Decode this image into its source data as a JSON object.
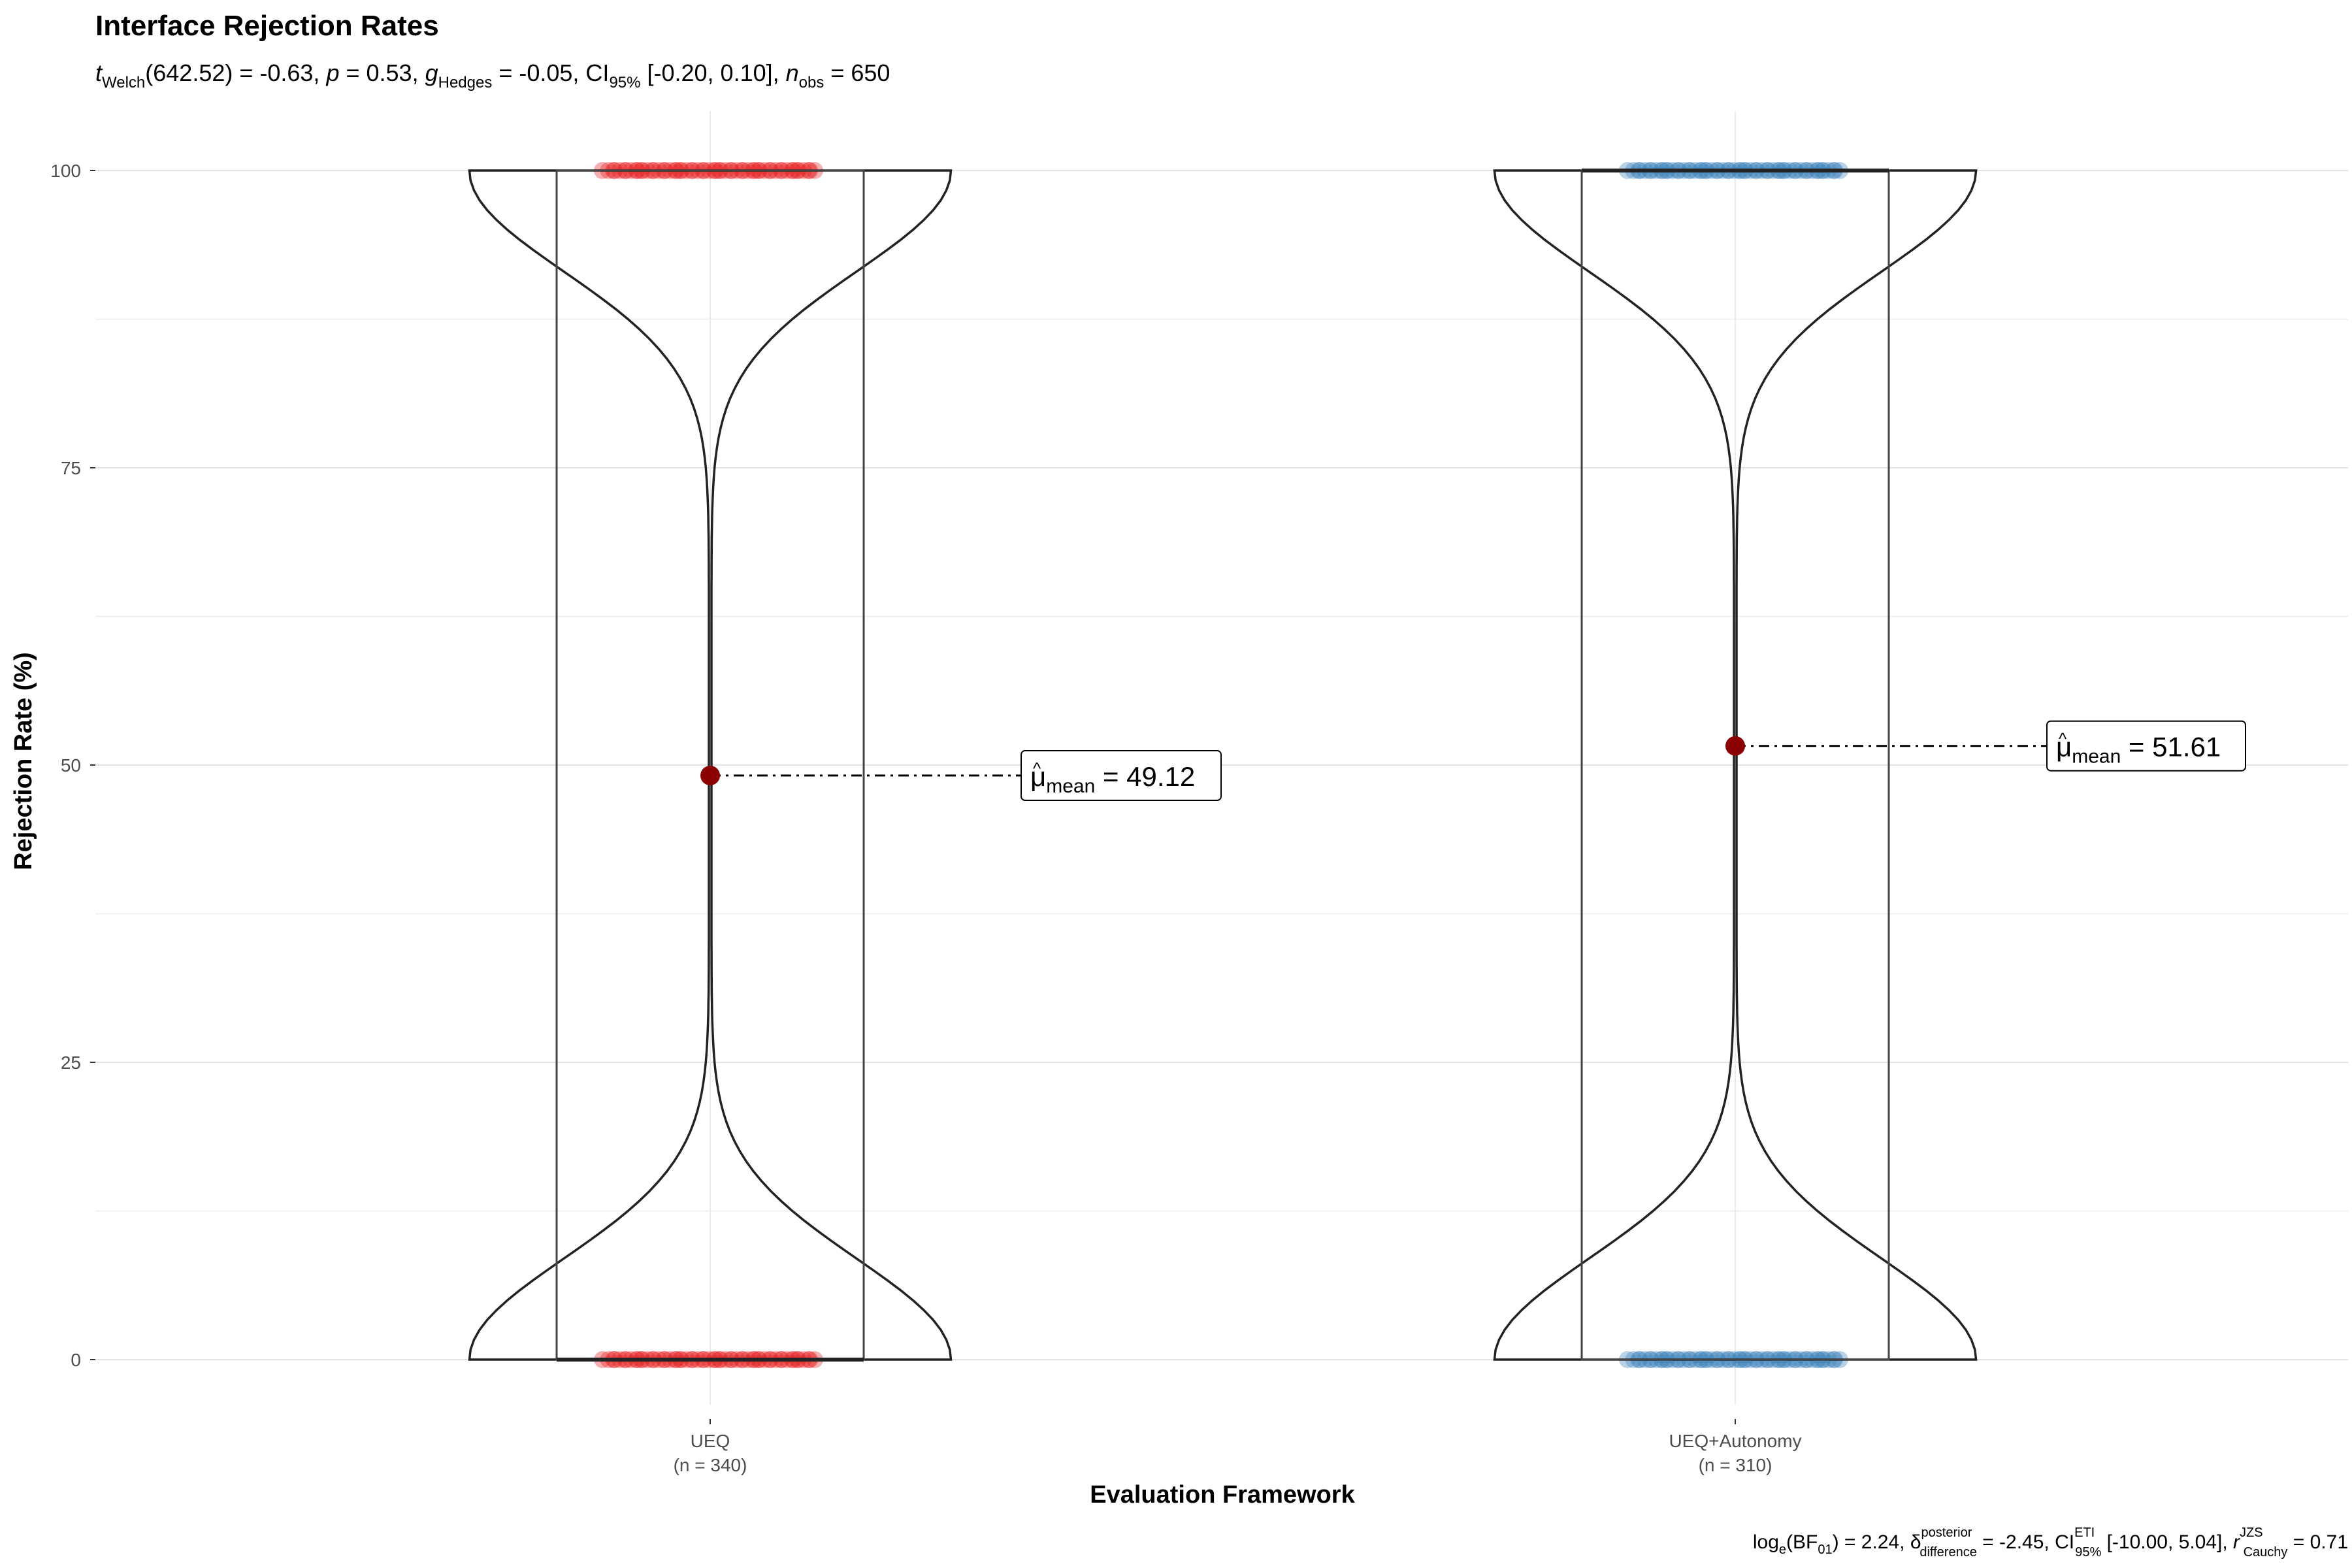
{
  "chart_data": {
    "type": "violin",
    "title": "Interface Rejection Rates",
    "subtitle": {
      "t_symbol": "t",
      "t_sub": "Welch",
      "t_val": "(642.52) = -0.63, ",
      "p_symbol": "p",
      "p_val": " = 0.53, ",
      "g_symbol": "g",
      "g_sub": "Hedges",
      "g_val": " = -0.05, CI",
      "ci_sub": "95%",
      "ci_val": " [-0.20, 0.10], ",
      "n_symbol": "n",
      "n_sub": "obs",
      "n_val": " = 650"
    },
    "xlabel": "Evaluation Framework",
    "ylabel": "Rejection Rate (%)",
    "ylim": [
      -10,
      210
    ],
    "yticks": [
      "0",
      "25",
      "50",
      "75",
      "100"
    ],
    "ytick_values": [
      0,
      25,
      50,
      75,
      100
    ],
    "groups": [
      {
        "name": "UEQ",
        "n_label": "(n = 340)",
        "n": 340,
        "mean": 49.12,
        "mean_label_val": "= 49.12",
        "box": {
          "q1": 0,
          "median": 0,
          "q3": 100
        },
        "color": "#e41a1c",
        "points_at": [
          0,
          100
        ]
      },
      {
        "name": "UEQ+Autonomy",
        "n_label": "(n = 310)",
        "n": 310,
        "mean": 51.61,
        "mean_label_val": "= 51.61",
        "box": {
          "q1": 0,
          "median": 100,
          "q3": 100
        },
        "color": "#377eb8",
        "points_at": [
          0,
          100
        ]
      }
    ],
    "mean_label_prefix": "μ",
    "mean_label_sub": "mean",
    "mean_point_color": "#8b0000",
    "caption": {
      "log_text": "log",
      "log_sub": "e",
      "bf_text": "(BF",
      "bf_sub": "01",
      "bf_val": ") = 2.24, ",
      "delta_symbol": "δ",
      "delta_sup": "posterior",
      "delta_sub": "difference",
      "delta_val": " = -2.45, CI",
      "ci_sup": "ETI",
      "ci_sub": "95%",
      "ci_val": " [-10.00, 5.04], ",
      "r_symbol": "r",
      "r_sup": "JZS",
      "r_sub": "Cauchy",
      "r_val": " = 0.71"
    },
    "grid": true,
    "legend": "none"
  }
}
